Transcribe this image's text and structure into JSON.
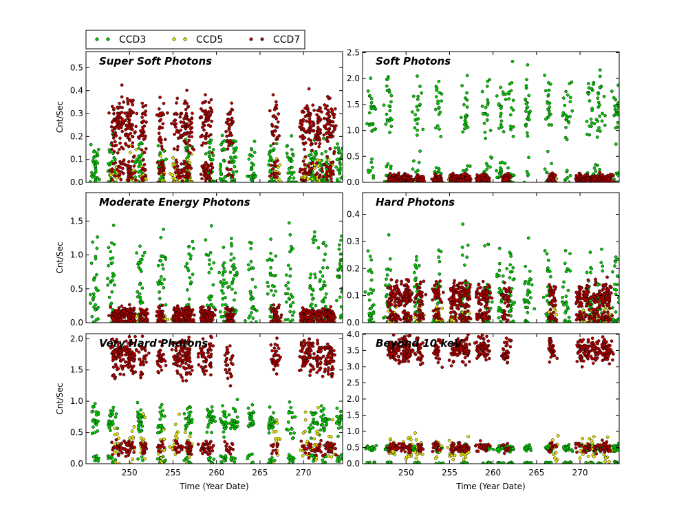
{
  "chart_data": {
    "type": "scatter",
    "legend": {
      "placement": "top-left-outside",
      "entries": [
        {
          "name": "CCD3",
          "color": "#00cc00"
        },
        {
          "name": "CCD5",
          "color": "#e6e600"
        },
        {
          "name": "CCD7",
          "color": "#b30000"
        }
      ]
    },
    "xlabel": "Time (Year Date)",
    "xlim": [
      245,
      274.5
    ],
    "xticks": [
      250,
      255,
      260,
      265,
      270
    ],
    "x_clusters_ccd3": [
      246,
      248,
      251.2,
      253.7,
      256.8,
      259.3,
      260.8,
      262,
      264,
      266.3,
      268.5,
      271.2,
      272.3,
      274.2
    ],
    "x_clusters_ccd5": [
      248.5,
      250.3,
      251.6,
      253.7,
      255.2,
      256.8,
      267,
      270.2,
      271.5,
      273.2
    ],
    "x_clusters_ccd7": [
      248.3,
      249,
      249.8,
      250.3,
      251.6,
      253.6,
      255.5,
      256.3,
      256.9,
      258.5,
      259.2,
      261.5,
      266.8,
      270,
      270.8,
      271.8,
      272.8,
      273.2
    ],
    "panels": [
      {
        "title": "Super Soft Photons",
        "ylabel": "Cnt/Sec",
        "ylim": [
          0,
          0.57
        ],
        "yticks": [
          "0.0",
          "0.1",
          "0.2",
          "0.3",
          "0.4",
          "0.5"
        ],
        "ytick_values": [
          0,
          0.1,
          0.2,
          0.3,
          0.4,
          0.5
        ],
        "series": [
          {
            "name": "CCD3",
            "level": 0.09,
            "spread": 0.05,
            "low": 0.005
          },
          {
            "name": "CCD5",
            "level": 0.06,
            "spread": 0.04,
            "low": 0.01
          },
          {
            "name": "CCD7",
            "level": 0.25,
            "spread": 0.06,
            "low": 0.05
          }
        ]
      },
      {
        "title": "Soft Photons",
        "ylabel": "",
        "ylim": [
          0,
          2.52
        ],
        "yticks": [
          "0.0",
          "0.5",
          "1.0",
          "1.5",
          "2.0",
          "2.5"
        ],
        "ytick_values": [
          0,
          0.5,
          1.0,
          1.5,
          2.0,
          2.5
        ],
        "series": [
          {
            "name": "CCD3",
            "level": 1.45,
            "spread": 0.35,
            "low": 0.2
          },
          {
            "name": "CCD5",
            "level": 0.05,
            "spread": 0.04,
            "low": 0.01
          },
          {
            "name": "CCD7",
            "level": 0.08,
            "spread": 0.04,
            "low": 0.02
          }
        ]
      },
      {
        "title": "Moderate Energy Photons",
        "ylabel": "Cnt/Sec",
        "ylim": [
          0,
          1.92
        ],
        "yticks": [
          "0.0",
          "0.5",
          "1.0",
          "1.5"
        ],
        "ytick_values": [
          0,
          0.5,
          1.0,
          1.5
        ],
        "series": [
          {
            "name": "CCD3",
            "level": 0.75,
            "spread": 0.35,
            "low": 0.15
          },
          {
            "name": "CCD5",
            "level": 0.06,
            "spread": 0.04,
            "low": 0.01
          },
          {
            "name": "CCD7",
            "level": 0.13,
            "spread": 0.05,
            "low": 0.02
          }
        ]
      },
      {
        "title": "Hard Photons",
        "ylabel": "",
        "ylim": [
          0,
          0.48
        ],
        "yticks": [
          "0.0",
          "0.1",
          "0.2",
          "0.3",
          "0.4"
        ],
        "ytick_values": [
          0,
          0.1,
          0.2,
          0.3,
          0.4
        ],
        "series": [
          {
            "name": "CCD3",
            "level": 0.13,
            "spread": 0.08,
            "low": 0.02
          },
          {
            "name": "CCD5",
            "level": 0.03,
            "spread": 0.02,
            "low": 0.005
          },
          {
            "name": "CCD7",
            "level": 0.1,
            "spread": 0.025,
            "low": 0.02
          }
        ]
      },
      {
        "title": "Very Hard Photons",
        "ylabel": "Cnt/Sec",
        "ylim": [
          0,
          2.08
        ],
        "yticks": [
          "0.0",
          "0.5",
          "1.0",
          "1.5",
          "2.0"
        ],
        "ytick_values": [
          0,
          0.5,
          1.0,
          1.5,
          2.0
        ],
        "series": [
          {
            "name": "CCD3",
            "level": 0.7,
            "spread": 0.12,
            "low": 0.08
          },
          {
            "name": "CCD5",
            "level": 0.35,
            "spread": 0.2,
            "low": 0.25
          },
          {
            "name": "CCD7",
            "level": 1.7,
            "spread": 0.15,
            "low": 0.25
          }
        ]
      },
      {
        "title": "Beyond 10 keV",
        "ylabel": "",
        "ylim": [
          0,
          4.02
        ],
        "yticks": [
          "0.0",
          "0.5",
          "1.0",
          "1.5",
          "2.0",
          "2.5",
          "3.0",
          "3.5",
          "4.0"
        ],
        "ytick_values": [
          0,
          0.5,
          1.0,
          1.5,
          2.0,
          2.5,
          3.0,
          3.5,
          4.0
        ],
        "series": [
          {
            "name": "CCD3",
            "level": 0.48,
            "spread": 0.05,
            "low": 0.02
          },
          {
            "name": "CCD5",
            "level": 0.5,
            "spread": 0.2,
            "low": 0.3
          },
          {
            "name": "CCD7",
            "level": 3.5,
            "spread": 0.2,
            "low": 0.5
          }
        ]
      }
    ]
  }
}
